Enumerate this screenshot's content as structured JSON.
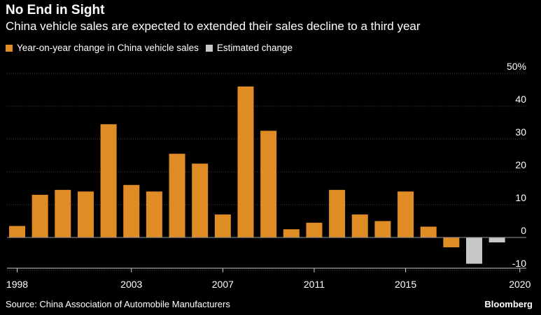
{
  "header": {
    "title": "No End in Sight",
    "subtitle": "China vehicle sales are expected to extended their sales decline to a third year"
  },
  "legend": [
    {
      "label": "Year-on-year change in China vehicle sales",
      "color": "#e08c24"
    },
    {
      "label": "Estimated change",
      "color": "#c8c8c8"
    }
  ],
  "footer": {
    "source": "Source: China Association of Automobile Manufacturers",
    "brand": "Bloomberg"
  },
  "chart_data": {
    "type": "bar",
    "title": "",
    "xlabel": "",
    "ylabel": "",
    "ylim": [
      -12,
      50
    ],
    "y_ticks": [
      -10,
      0,
      10,
      20,
      30,
      40,
      50
    ],
    "y_tick_labels": [
      "-10",
      "0",
      "10",
      "20",
      "30",
      "40",
      "50%"
    ],
    "x_tick_labels": [
      "1998",
      "2003",
      "2007",
      "2011",
      "2015",
      "2020"
    ],
    "categories": [
      "1998",
      "1999",
      "2000",
      "2001",
      "2002",
      "2003",
      "2004",
      "2005",
      "2006",
      "2007",
      "2008",
      "2009",
      "2010",
      "2011",
      "2012",
      "2013",
      "2014",
      "2015",
      "2016",
      "2017",
      "2018",
      "2019",
      "2020"
    ],
    "values": [
      3.5,
      13,
      14.5,
      14,
      34.5,
      16,
      14,
      25.5,
      22.5,
      7,
      46,
      32.5,
      2.5,
      4.5,
      14.5,
      7,
      5,
      14,
      3.3,
      -3,
      -8,
      -1.5,
      null
    ],
    "estimated": [
      false,
      false,
      false,
      false,
      false,
      false,
      false,
      false,
      false,
      false,
      false,
      false,
      false,
      false,
      false,
      false,
      false,
      false,
      false,
      false,
      true,
      true,
      false
    ],
    "colors": {
      "actual": "#e08c24",
      "estimated": "#c8c8c8",
      "grid": "#444444",
      "zero": "#9a9a9a"
    },
    "grid": true
  }
}
